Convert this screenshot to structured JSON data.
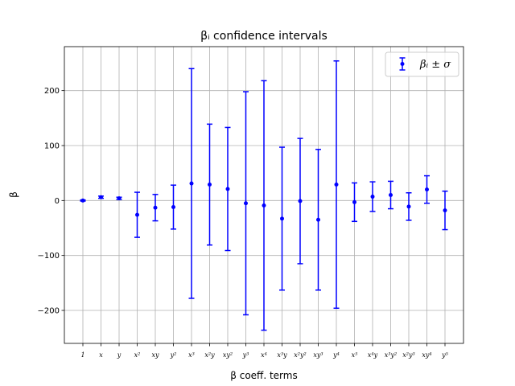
{
  "chart_data": {
    "type": "scatter",
    "title": "βᵢ confidence intervals",
    "xlabel": "β coeff. terms",
    "ylabel": "β",
    "ylim": [
      -260,
      280
    ],
    "yticks": [
      -200,
      -100,
      0,
      100,
      200
    ],
    "ytick_labels": [
      "−200",
      "−100",
      "0",
      "100",
      "200"
    ],
    "grid": true,
    "legend": {
      "placement": "top-right",
      "label": "βᵢ ± σ"
    },
    "color": "#0000ff",
    "categories": [
      "1",
      "x",
      "y",
      "x²",
      "xy",
      "y²",
      "x³",
      "x²y",
      "xy²",
      "y³",
      "x⁴",
      "x³y",
      "x²y²",
      "xy³",
      "y⁴",
      "x⁵",
      "x⁴y",
      "x³y²",
      "x²y³",
      "xy⁴",
      "y⁵"
    ],
    "series": [
      {
        "values": [
          0,
          6,
          4,
          -26,
          -13,
          -12,
          31,
          29,
          21,
          -5,
          -9,
          -33,
          -1,
          -35,
          29,
          -3,
          7,
          10,
          -11,
          20,
          -18
        ],
        "errors": [
          1,
          2,
          2,
          41,
          24,
          40,
          209,
          110,
          112,
          203,
          227,
          130,
          114,
          128,
          225,
          35,
          27,
          25,
          25,
          25,
          35
        ]
      }
    ]
  }
}
